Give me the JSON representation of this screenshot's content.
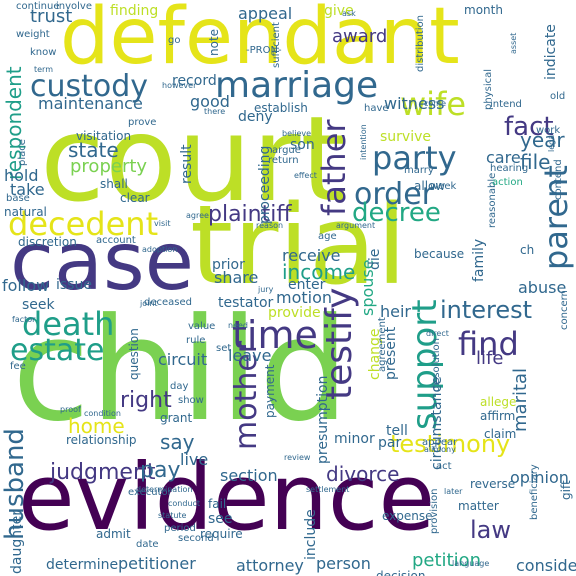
{
  "palette": {
    "lime": "#bddf26",
    "yellow": "#e5e419",
    "green": "#7ad151",
    "emerald": "#35b779",
    "teal": "#1f9e89",
    "steel": "#31688e",
    "indigo": "#443983",
    "purple": "#440154",
    "seafoam": "#22a884"
  },
  "words": [
    {
      "text": "court",
      "color": "lime"
    },
    {
      "text": "child",
      "color": "green"
    },
    {
      "text": "evidence",
      "color": "purple"
    },
    {
      "text": "defendant",
      "color": "yellow"
    },
    {
      "text": "trial",
      "color": "lime"
    },
    {
      "text": "case",
      "color": "indigo"
    },
    {
      "text": "custody",
      "color": "steel"
    },
    {
      "text": "marriage",
      "color": "steel"
    },
    {
      "text": "wife",
      "color": "lime"
    },
    {
      "text": "decedent",
      "color": "yellow"
    },
    {
      "text": "death",
      "color": "teal"
    },
    {
      "text": "estate",
      "color": "teal"
    },
    {
      "text": "time",
      "color": "indigo"
    },
    {
      "text": "party",
      "color": "steel"
    },
    {
      "text": "order",
      "color": "steel"
    },
    {
      "text": "decree",
      "color": "seafoam"
    },
    {
      "text": "support",
      "color": "teal"
    },
    {
      "text": "testify",
      "color": "indigo"
    },
    {
      "text": "father",
      "color": "indigo"
    },
    {
      "text": "parent",
      "color": "steel"
    },
    {
      "text": "mother",
      "color": "indigo"
    },
    {
      "text": "husband",
      "color": "steel"
    },
    {
      "text": "plaintiff",
      "color": "indigo"
    },
    {
      "text": "find",
      "color": "indigo"
    },
    {
      "text": "fact",
      "color": "indigo"
    },
    {
      "text": "interest",
      "color": "steel"
    },
    {
      "text": "testimony",
      "color": "yellow"
    },
    {
      "text": "divorce",
      "color": "indigo"
    },
    {
      "text": "judgment",
      "color": "indigo"
    },
    {
      "text": "right",
      "color": "indigo"
    },
    {
      "text": "income",
      "color": "teal"
    },
    {
      "text": "home",
      "color": "yellow"
    },
    {
      "text": "say",
      "color": "steel"
    },
    {
      "text": "pay",
      "color": "steel"
    },
    {
      "text": "law",
      "color": "indigo"
    },
    {
      "text": "file",
      "color": "steel"
    },
    {
      "text": "year",
      "color": "steel"
    },
    {
      "text": "state",
      "color": "steel"
    },
    {
      "text": "property",
      "color": "green"
    },
    {
      "text": "respondent",
      "color": "teal"
    },
    {
      "text": "maintenance",
      "color": "steel"
    },
    {
      "text": "trust",
      "color": "steel"
    },
    {
      "text": "appeal",
      "color": "steel"
    },
    {
      "text": "award",
      "color": "indigo"
    },
    {
      "text": "witness",
      "color": "steel"
    },
    {
      "text": "opinion",
      "color": "steel"
    },
    {
      "text": "consider",
      "color": "steel"
    },
    {
      "text": "petitioner",
      "color": "steel"
    },
    {
      "text": "attorney",
      "color": "steel"
    },
    {
      "text": "person",
      "color": "steel"
    },
    {
      "text": "petition",
      "color": "seafoam"
    },
    {
      "text": "determine",
      "color": "steel"
    },
    {
      "text": "daughter",
      "color": "steel"
    },
    {
      "text": "include",
      "color": "steel"
    },
    {
      "text": "section",
      "color": "steel"
    },
    {
      "text": "live",
      "color": "steel"
    },
    {
      "text": "spouse",
      "color": "seafoam"
    },
    {
      "text": "marital",
      "color": "steel"
    },
    {
      "text": "circumstance",
      "color": "steel"
    },
    {
      "text": "abuse",
      "color": "steel"
    },
    {
      "text": "family",
      "color": "steel"
    },
    {
      "text": "heir",
      "color": "steel"
    },
    {
      "text": "life",
      "color": "indigo"
    },
    {
      "text": "motion",
      "color": "steel"
    },
    {
      "text": "enter",
      "color": "steel"
    },
    {
      "text": "receive",
      "color": "steel"
    },
    {
      "text": "share",
      "color": "steel"
    },
    {
      "text": "provide",
      "color": "lime"
    },
    {
      "text": "testator",
      "color": "steel"
    },
    {
      "text": "circuit",
      "color": "steel"
    },
    {
      "text": "leave",
      "color": "steel"
    },
    {
      "text": "prior",
      "color": "steel"
    },
    {
      "text": "follow",
      "color": "steel"
    },
    {
      "text": "issue",
      "color": "steel"
    },
    {
      "text": "seek",
      "color": "steel"
    },
    {
      "text": "deny",
      "color": "steel"
    },
    {
      "text": "care",
      "color": "steel"
    },
    {
      "text": "take",
      "color": "steel"
    },
    {
      "text": "hold",
      "color": "steel"
    },
    {
      "text": "good",
      "color": "steel"
    },
    {
      "text": "survive",
      "color": "lime"
    },
    {
      "text": "proceeding",
      "color": "steel"
    },
    {
      "text": "result",
      "color": "steel"
    },
    {
      "text": "son",
      "color": "steel"
    },
    {
      "text": "die",
      "color": "steel"
    },
    {
      "text": "present",
      "color": "steel"
    },
    {
      "text": "presumption",
      "color": "steel"
    },
    {
      "text": "change",
      "color": "lime"
    },
    {
      "text": "minor",
      "color": "steel"
    },
    {
      "text": "tell",
      "color": "steel"
    },
    {
      "text": "par",
      "color": "steel"
    },
    {
      "text": "record",
      "color": "steel"
    },
    {
      "text": "finding",
      "color": "lime"
    },
    {
      "text": "give",
      "color": "lime"
    },
    {
      "text": "month",
      "color": "steel"
    },
    {
      "text": "indicate",
      "color": "steel"
    },
    {
      "text": "note",
      "color": "steel"
    },
    {
      "text": "question",
      "color": "steel"
    },
    {
      "text": "grant",
      "color": "steel"
    },
    {
      "text": "relationship",
      "color": "steel"
    },
    {
      "text": "payment",
      "color": "steel"
    },
    {
      "text": "affirm",
      "color": "steel"
    },
    {
      "text": "allege",
      "color": "lime"
    },
    {
      "text": "claim",
      "color": "steel"
    },
    {
      "text": "matter",
      "color": "steel"
    },
    {
      "text": "expense",
      "color": "steel"
    },
    {
      "text": "see",
      "color": "steel"
    },
    {
      "text": "fail",
      "color": "steel"
    },
    {
      "text": "require",
      "color": "steel"
    },
    {
      "text": "date",
      "color": "steel"
    },
    {
      "text": "admit",
      "color": "steel"
    },
    {
      "text": "reverse",
      "color": "steel"
    },
    {
      "text": "gift",
      "color": "steel"
    },
    {
      "text": "decision",
      "color": "steel"
    },
    {
      "text": "visitation",
      "color": "steel"
    },
    {
      "text": "shall",
      "color": "steel"
    },
    {
      "text": "clear",
      "color": "steel"
    },
    {
      "text": "discretion",
      "color": "steel"
    },
    {
      "text": "account",
      "color": "steel"
    },
    {
      "text": "natural",
      "color": "steel"
    },
    {
      "text": "place",
      "color": "steel"
    },
    {
      "text": "base",
      "color": "steel"
    },
    {
      "text": "establish",
      "color": "steel"
    },
    {
      "text": "argue",
      "color": "steel"
    },
    {
      "text": "return",
      "color": "steel"
    },
    {
      "text": "allow",
      "color": "steel"
    },
    {
      "text": "week",
      "color": "steel"
    },
    {
      "text": "age",
      "color": "steel"
    },
    {
      "text": "because",
      "color": "steel"
    },
    {
      "text": "reasonable",
      "color": "steel"
    },
    {
      "text": "work",
      "color": "steel"
    },
    {
      "text": "hearing",
      "color": "steel"
    },
    {
      "text": "action",
      "color": "seafoam"
    },
    {
      "text": "know",
      "color": "steel"
    },
    {
      "text": "weight",
      "color": "steel"
    },
    {
      "text": "continue",
      "color": "steel"
    },
    {
      "text": "involve",
      "color": "steel"
    },
    {
      "text": "go",
      "color": "steel"
    },
    {
      "text": "ask",
      "color": "steel"
    },
    {
      "text": "physical",
      "color": "steel"
    },
    {
      "text": "distribution",
      "color": "steel"
    },
    {
      "text": "intend",
      "color": "steel"
    },
    {
      "text": "old",
      "color": "steel"
    },
    {
      "text": "-PRON-",
      "color": "steel"
    },
    {
      "text": "sufficient",
      "color": "steel"
    },
    {
      "text": "however",
      "color": "steel"
    },
    {
      "text": "there",
      "color": "steel"
    },
    {
      "text": "have",
      "color": "steel"
    },
    {
      "text": "prove",
      "color": "steel"
    },
    {
      "text": "marry",
      "color": "steel"
    },
    {
      "text": "day",
      "color": "steel"
    },
    {
      "text": "show",
      "color": "steel"
    },
    {
      "text": "fee",
      "color": "steel"
    },
    {
      "text": "proof",
      "color": "steel"
    },
    {
      "text": "condition",
      "color": "steel"
    },
    {
      "text": "agreement",
      "color": "steel"
    },
    {
      "text": "dissolution",
      "color": "steel"
    },
    {
      "text": "alimony",
      "color": "steel"
    },
    {
      "text": "appear",
      "color": "steel"
    },
    {
      "text": "act",
      "color": "steel"
    },
    {
      "text": "factor",
      "color": "steel"
    },
    {
      "text": "deceased",
      "color": "steel"
    },
    {
      "text": "jury",
      "color": "steel"
    },
    {
      "text": "value",
      "color": "steel"
    },
    {
      "text": "need",
      "color": "steel"
    },
    {
      "text": "rule",
      "color": "steel"
    },
    {
      "text": "set",
      "color": "steel"
    },
    {
      "text": "executor",
      "color": "steel"
    },
    {
      "text": "determination",
      "color": "steel"
    },
    {
      "text": "settlement",
      "color": "steel"
    },
    {
      "text": "later",
      "color": "steel"
    },
    {
      "text": "language",
      "color": "steel"
    },
    {
      "text": "second",
      "color": "steel"
    },
    {
      "text": "period",
      "color": "steel"
    },
    {
      "text": "statute",
      "color": "steel"
    },
    {
      "text": "conduct",
      "color": "steel"
    },
    {
      "text": "provision",
      "color": "steel"
    },
    {
      "text": "beneficiary",
      "color": "steel"
    },
    {
      "text": "concern",
      "color": "steel"
    },
    {
      "text": "direct",
      "color": "steel"
    },
    {
      "text": "joint",
      "color": "steel"
    },
    {
      "text": "intention",
      "color": "steel"
    },
    {
      "text": "legal",
      "color": "steel"
    },
    {
      "text": "contend",
      "color": "steel"
    },
    {
      "text": "asset",
      "color": "steel"
    },
    {
      "text": "term",
      "color": "steel"
    },
    {
      "text": "effect",
      "color": "steel"
    },
    {
      "text": "believe",
      "color": "steel"
    },
    {
      "text": "reason",
      "color": "steel"
    },
    {
      "text": "adoption",
      "color": "steel"
    },
    {
      "text": "visit",
      "color": "steel"
    },
    {
      "text": "agree",
      "color": "steel"
    },
    {
      "text": "argument",
      "color": "steel"
    },
    {
      "text": "review",
      "color": "steel"
    },
    {
      "text": "come",
      "color": "steel"
    },
    {
      "text": "ch",
      "color": "steel"
    }
  ]
}
